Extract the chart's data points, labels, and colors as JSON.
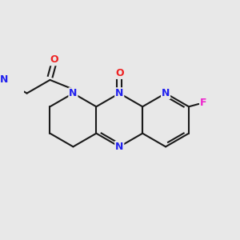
{
  "bg": "#e8e8e8",
  "bc": "#1a1a1a",
  "nc": "#2222ee",
  "oc": "#ee2222",
  "fc": "#ee22cc",
  "lw": 1.5,
  "figsize": [
    3.0,
    3.0
  ],
  "dpi": 100,
  "xlim": [
    -0.3,
    7.7
  ],
  "ylim": [
    -0.5,
    4.5
  ]
}
